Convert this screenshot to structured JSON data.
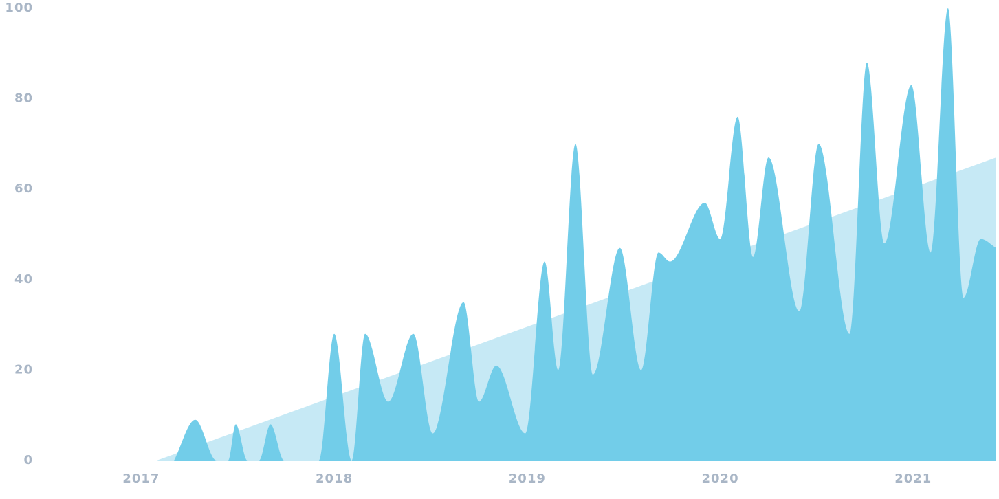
{
  "chart_data": {
    "type": "area",
    "xlim": [
      2016.5,
      2021.43
    ],
    "xticks": [
      2017,
      2018,
      2019,
      2020,
      2021
    ],
    "ylim": [
      0,
      100
    ],
    "yticks": [
      0,
      20,
      40,
      60,
      80,
      100
    ],
    "grid": false,
    "series": [
      {
        "color": "#c6e9f5",
        "smooth": false,
        "x": [
          2017.08,
          2021.43
        ],
        "values": [
          0,
          67
        ]
      },
      {
        "color": "#72cde9",
        "smooth": true,
        "x": [
          2017.17,
          2017.28,
          2017.39,
          2017.45,
          2017.49,
          2017.55,
          2017.61,
          2017.67,
          2017.74,
          2017.92,
          2018.0,
          2018.09,
          2018.16,
          2018.28,
          2018.41,
          2018.51,
          2018.67,
          2018.75,
          2018.84,
          2018.99,
          2019.09,
          2019.16,
          2019.25,
          2019.34,
          2019.48,
          2019.59,
          2019.68,
          2019.74,
          2019.92,
          2020.0,
          2020.09,
          2020.17,
          2020.25,
          2020.41,
          2020.51,
          2020.67,
          2020.76,
          2020.85,
          2020.99,
          2021.09,
          2021.18,
          2021.26,
          2021.35,
          2021.43
        ],
        "values": [
          0,
          9,
          0,
          0,
          8,
          0,
          0,
          8,
          0,
          0,
          28,
          0,
          28,
          13,
          28,
          6,
          35,
          13,
          21,
          6,
          44,
          20,
          70,
          19,
          47,
          20,
          46,
          44,
          57,
          49,
          76,
          45,
          67,
          33,
          70,
          28,
          88,
          48,
          83,
          46,
          100,
          36,
          49,
          47
        ]
      }
    ]
  }
}
